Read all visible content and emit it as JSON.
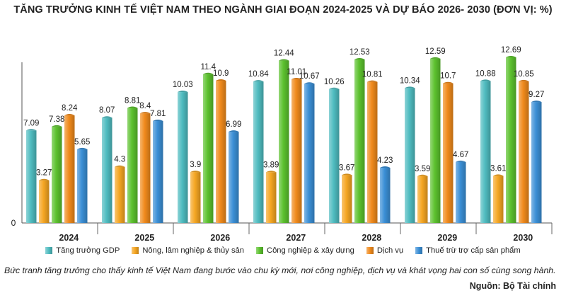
{
  "chart_data": {
    "type": "bar",
    "title": "TĂNG TRƯỞNG KINH TẾ VIỆT NAM THEO NGÀNH GIAI ĐOẠN 2024-2025 VÀ DỰ BÁO 2026- 2030 (ĐƠN VỊ: %)",
    "xlabel": "",
    "ylabel": "",
    "ylim": [
      0,
      13.5
    ],
    "y_tick_labels": [
      "0"
    ],
    "grid": false,
    "legend_position": "bottom",
    "categories": [
      "2024",
      "2025",
      "2026",
      "2027",
      "2028",
      "2029",
      "2030"
    ],
    "series": [
      {
        "name": "Tăng trưởng GDP",
        "color": "#4fbcc0",
        "values": [
          7.09,
          8.07,
          10.03,
          10.84,
          10.26,
          10.34,
          10.88
        ]
      },
      {
        "name": "Nông, lâm nghiệp & thủy sản",
        "color": "#f5a623",
        "values": [
          3.27,
          4.3,
          3.9,
          3.89,
          3.67,
          3.59,
          3.61
        ]
      },
      {
        "name": "Công nghiệp & xây dựng",
        "color": "#5cc12e",
        "values": [
          7.38,
          8.81,
          11.4,
          12.44,
          12.53,
          12.59,
          12.69
        ]
      },
      {
        "name": "Dịch vụ",
        "color": "#f08a1c",
        "values": [
          8.24,
          8.4,
          10.9,
          11.01,
          10.81,
          10.7,
          10.85
        ]
      },
      {
        "name": "Thuế trừ trợ cấp sản phẩm",
        "color": "#3b8fd6",
        "values": [
          5.65,
          7.81,
          6.99,
          10.67,
          4.23,
          4.67,
          9.27
        ]
      }
    ]
  },
  "caption": "Bức tranh tăng trưởng cho thấy kinh tế Việt Nam đang bước vào chu kỳ mới, nơi công nghiệp, dịch vụ và khát vọng hai con số cùng song hành.",
  "source": "Nguồn: Bộ Tài chính"
}
